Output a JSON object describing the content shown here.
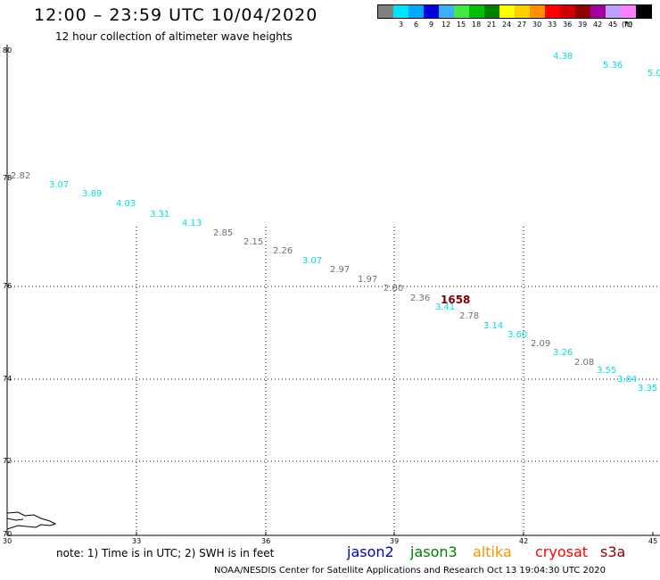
{
  "header": {
    "title": "12:00 – 23:59 UTC 10/04/2020",
    "subtitle": "12 hour collection of altimeter wave heights"
  },
  "legend": {
    "unit": "(ft)",
    "items": [
      {
        "label": "",
        "color": "#808080"
      },
      {
        "label": "3",
        "color": "#00e5ff"
      },
      {
        "label": "6",
        "color": "#00a8ff"
      },
      {
        "label": "9",
        "color": "#0000e0"
      },
      {
        "label": "12",
        "color": "#3fb0ff"
      },
      {
        "label": "15",
        "color": "#44e844"
      },
      {
        "label": "18",
        "color": "#00c000"
      },
      {
        "label": "21",
        "color": "#008000"
      },
      {
        "label": "24",
        "color": "#ffff00"
      },
      {
        "label": "27",
        "color": "#ffd000"
      },
      {
        "label": "30",
        "color": "#ff9000"
      },
      {
        "label": "33",
        "color": "#ff0000"
      },
      {
        "label": "36",
        "color": "#d00000"
      },
      {
        "label": "39",
        "color": "#900000"
      },
      {
        "label": "42",
        "color": "#a000a0"
      },
      {
        "label": "45",
        "color": "#c0a0ff"
      },
      {
        "label": "70",
        "color": "#ff80ff"
      },
      {
        "label": "",
        "color": "#000000"
      }
    ]
  },
  "axes": {
    "lat_labels": [
      "80",
      "78",
      "76",
      "74",
      "72",
      "70"
    ],
    "lon_labels": [
      "30",
      "33",
      "36",
      "39",
      "42",
      "45"
    ]
  },
  "observations": [
    {
      "text": "4.38",
      "color": "#00e0e0"
    },
    {
      "text": "5.36",
      "color": "#00e0e0"
    },
    {
      "text": "5.0",
      "color": "#00e0e0"
    },
    {
      "text": "2.82",
      "color": "#707070"
    },
    {
      "text": "3.07",
      "color": "#00e0e0"
    },
    {
      "text": "3.89",
      "color": "#00e0e0"
    },
    {
      "text": "4.03",
      "color": "#00e0e0"
    },
    {
      "text": "3.31",
      "color": "#00e0e0"
    },
    {
      "text": "4.13",
      "color": "#00e0e0"
    },
    {
      "text": "2.85",
      "color": "#707070"
    },
    {
      "text": "2.15",
      "color": "#707070"
    },
    {
      "text": "2.26",
      "color": "#707070"
    },
    {
      "text": "3.07",
      "color": "#00e0e0"
    },
    {
      "text": "2.97",
      "color": "#707070"
    },
    {
      "text": "1.97",
      "color": "#707070"
    },
    {
      "text": "2.60",
      "color": "#707070"
    },
    {
      "text": "2.36",
      "color": "#707070"
    },
    {
      "text": "1658",
      "color": "#800000"
    },
    {
      "text": "3.41",
      "color": "#00e0e0"
    },
    {
      "text": "2.78",
      "color": "#707070"
    },
    {
      "text": "3.14",
      "color": "#00e0e0"
    },
    {
      "text": "3.60",
      "color": "#00e0e0"
    },
    {
      "text": "2.09",
      "color": "#707070"
    },
    {
      "text": "3.26",
      "color": "#00e0e0"
    },
    {
      "text": "2.08",
      "color": "#707070"
    },
    {
      "text": "3.55",
      "color": "#00e0e0"
    },
    {
      "text": "3.84",
      "color": "#00e0e0"
    },
    {
      "text": "3.35",
      "color": "#00e0e0"
    }
  ],
  "footer": {
    "note": "note:  1) Time is in UTC;  2) SWH is in feet",
    "satellites": [
      {
        "name": "jason2",
        "color": "#0000c0"
      },
      {
        "name": "jason3",
        "color": "#008000"
      },
      {
        "name": "altika",
        "color": "#ff9000"
      },
      {
        "name": "cryosat",
        "color": "#ff0000"
      },
      {
        "name": "s3a",
        "color": "#900000"
      }
    ],
    "credit": "NOAA/NESDIS Center for Satellite Applications and Research    Oct 13 19:04:30 UTC 2020"
  }
}
